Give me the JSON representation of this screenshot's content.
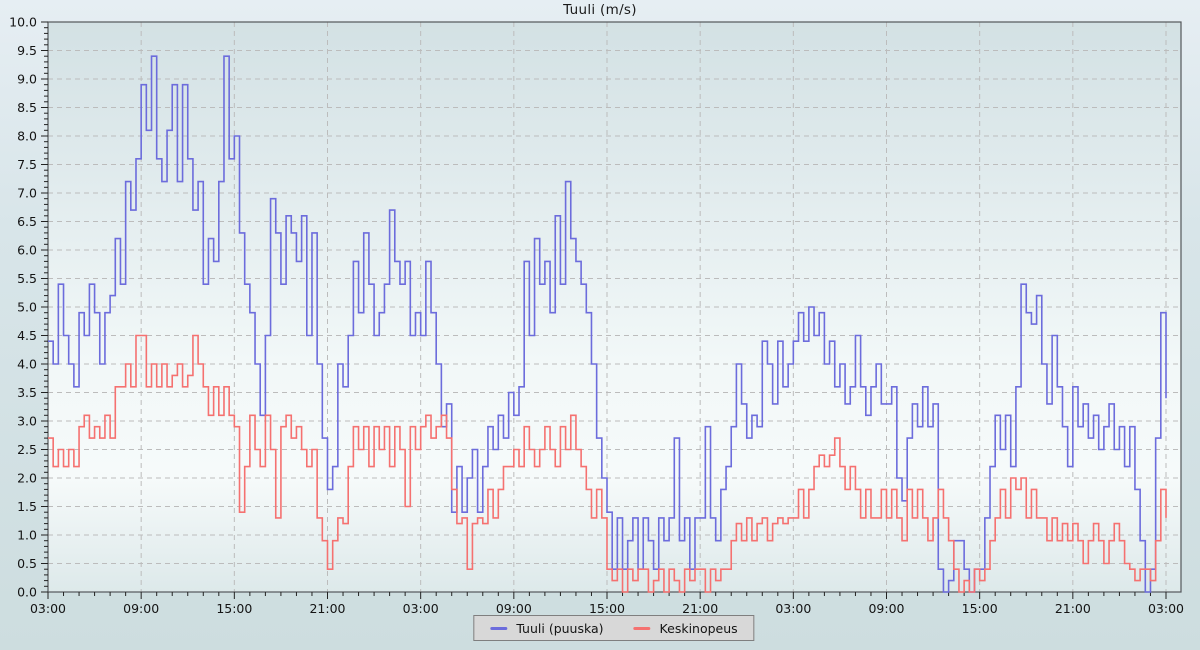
{
  "title": "Tuuli (m/s)",
  "colors": {
    "gust": "#6c6cdc",
    "average": "#f57170",
    "grid": "#bcbcbc",
    "frame": "#53575a",
    "tick": "#222222",
    "legend_background": "#d8d8d8",
    "legend_border": "#7f7f7f",
    "plot_gradient_stops": [
      "#d3e1e4",
      "#e2ecee",
      "#f2f8f8",
      "#f6fafa",
      "#dde9ea"
    ]
  },
  "chart_data": {
    "type": "line",
    "step_mode": "after",
    "title": "Tuuli (m/s)",
    "grid": "dashed",
    "legend_position": "bottom-center",
    "x_axis": {
      "unit": "time",
      "span_hours": 72,
      "sample_interval_minutes": 20,
      "major_tick_every_hours": 6,
      "minor_tick_every_hours": 1,
      "tick_labels": [
        "03:00",
        "09:00",
        "15:00",
        "21:00",
        "03:00",
        "09:00",
        "15:00",
        "21:00",
        "03:00",
        "09:00",
        "15:00",
        "21:00",
        "03:00"
      ]
    },
    "y_axis": {
      "min": 0.0,
      "max": 10.0,
      "major_step": 0.5,
      "minor_step": 0.1,
      "tick_labels": [
        "10.0",
        "9.5",
        "9.0",
        "8.5",
        "8.0",
        "7.5",
        "7.0",
        "6.5",
        "6.0",
        "5.5",
        "5.0",
        "4.5",
        "4.0",
        "3.5",
        "3.0",
        "2.5",
        "2.0",
        "1.5",
        "1.0",
        "0.5",
        "0.0"
      ]
    },
    "series": [
      {
        "name": "Tuuli (puuska)",
        "color": "#6c6cdc",
        "values": [
          4.4,
          4.0,
          5.4,
          4.5,
          4.0,
          3.6,
          4.9,
          4.5,
          5.4,
          4.9,
          4.0,
          4.9,
          5.2,
          6.2,
          5.4,
          7.2,
          6.7,
          7.6,
          8.9,
          8.1,
          9.4,
          7.6,
          7.2,
          8.1,
          8.9,
          7.2,
          8.9,
          7.6,
          6.7,
          7.2,
          5.4,
          6.2,
          5.8,
          7.2,
          9.4,
          7.6,
          8.0,
          6.3,
          5.4,
          4.9,
          4.0,
          3.1,
          4.5,
          6.9,
          6.3,
          5.4,
          6.6,
          6.3,
          5.8,
          6.6,
          4.5,
          6.3,
          4.0,
          2.7,
          1.8,
          2.2,
          4.0,
          3.6,
          4.5,
          5.8,
          4.9,
          6.3,
          5.4,
          4.5,
          4.9,
          5.4,
          6.7,
          5.8,
          5.4,
          5.8,
          4.5,
          4.9,
          4.5,
          5.8,
          4.9,
          4.0,
          2.9,
          3.3,
          1.4,
          2.2,
          1.4,
          2.0,
          2.5,
          1.4,
          2.2,
          2.9,
          2.5,
          3.1,
          2.7,
          3.5,
          3.1,
          3.6,
          5.8,
          4.5,
          6.2,
          5.4,
          5.8,
          4.9,
          6.6,
          5.4,
          7.2,
          6.2,
          5.8,
          5.4,
          4.9,
          4.0,
          2.7,
          2.0,
          1.4,
          0.4,
          1.3,
          0.4,
          0.9,
          1.3,
          0.4,
          1.3,
          0.9,
          0.4,
          1.3,
          0.9,
          1.3,
          2.7,
          0.9,
          1.3,
          0.4,
          1.3,
          1.3,
          2.9,
          1.3,
          0.9,
          1.8,
          2.2,
          2.9,
          4.0,
          3.3,
          2.7,
          3.1,
          2.9,
          4.4,
          4.0,
          3.3,
          4.4,
          3.6,
          4.0,
          4.4,
          4.9,
          4.4,
          5.0,
          4.5,
          4.9,
          4.0,
          4.4,
          3.6,
          4.0,
          3.3,
          3.6,
          4.5,
          3.6,
          3.1,
          3.6,
          4.0,
          3.3,
          3.3,
          3.6,
          2.0,
          1.6,
          2.7,
          3.3,
          2.9,
          3.6,
          2.9,
          3.3,
          0.4,
          0.0,
          0.2,
          0.9,
          0.9,
          0.4,
          0.0,
          0.4,
          0.4,
          1.3,
          2.2,
          3.1,
          2.5,
          3.1,
          2.2,
          3.6,
          5.4,
          4.9,
          4.7,
          5.2,
          4.0,
          3.3,
          4.5,
          3.6,
          2.9,
          2.2,
          3.6,
          2.9,
          3.3,
          2.7,
          3.1,
          2.5,
          2.9,
          3.3,
          2.5,
          2.9,
          2.2,
          2.9,
          1.8,
          0.9,
          0.0,
          0.4,
          2.7,
          4.9,
          3.4
        ]
      },
      {
        "name": "Keskinopeus",
        "color": "#f57170",
        "values": [
          2.7,
          2.2,
          2.5,
          2.2,
          2.5,
          2.2,
          2.9,
          3.1,
          2.7,
          2.9,
          2.7,
          3.1,
          2.7,
          3.6,
          3.6,
          4.0,
          3.6,
          4.5,
          4.5,
          3.6,
          4.0,
          3.6,
          4.0,
          3.6,
          3.8,
          4.0,
          3.6,
          3.8,
          4.5,
          4.0,
          3.6,
          3.1,
          3.6,
          3.1,
          3.6,
          3.1,
          2.9,
          1.4,
          2.2,
          3.1,
          2.5,
          2.2,
          3.1,
          2.5,
          1.3,
          2.9,
          3.1,
          2.7,
          2.9,
          2.5,
          2.2,
          2.5,
          1.3,
          0.9,
          0.4,
          0.9,
          1.3,
          1.2,
          2.2,
          2.9,
          2.5,
          2.9,
          2.2,
          2.9,
          2.5,
          2.9,
          2.2,
          2.9,
          2.5,
          1.5,
          2.9,
          2.5,
          2.9,
          3.1,
          2.7,
          2.9,
          3.1,
          2.7,
          1.8,
          1.2,
          1.3,
          0.4,
          1.2,
          1.3,
          1.2,
          1.8,
          1.3,
          1.8,
          2.2,
          2.2,
          2.5,
          2.2,
          2.9,
          2.5,
          2.2,
          2.5,
          2.9,
          2.5,
          2.2,
          2.9,
          2.5,
          3.1,
          2.5,
          2.2,
          1.8,
          1.3,
          1.8,
          1.3,
          0.4,
          0.2,
          0.4,
          0.0,
          0.4,
          0.2,
          0.4,
          0.4,
          0.0,
          0.2,
          0.4,
          0.0,
          0.4,
          0.2,
          0.0,
          0.4,
          0.2,
          0.4,
          0.4,
          0.0,
          0.4,
          0.2,
          0.4,
          0.4,
          0.9,
          1.2,
          0.9,
          1.3,
          0.9,
          1.2,
          1.3,
          0.9,
          1.2,
          1.3,
          1.2,
          1.3,
          1.3,
          1.8,
          1.3,
          1.8,
          2.2,
          2.4,
          2.2,
          2.4,
          2.7,
          2.2,
          1.8,
          2.2,
          1.8,
          1.3,
          1.8,
          1.3,
          1.3,
          1.8,
          1.3,
          1.8,
          1.3,
          0.9,
          1.8,
          1.3,
          1.8,
          1.3,
          0.9,
          1.3,
          1.8,
          1.3,
          0.9,
          0.4,
          0.0,
          0.2,
          0.0,
          0.4,
          0.2,
          0.4,
          0.9,
          1.3,
          1.8,
          1.3,
          2.0,
          1.8,
          2.0,
          1.3,
          1.8,
          1.3,
          1.3,
          0.9,
          1.3,
          0.9,
          1.2,
          0.9,
          1.2,
          0.9,
          0.5,
          0.9,
          1.2,
          0.9,
          0.5,
          0.9,
          1.2,
          0.9,
          0.5,
          0.4,
          0.2,
          0.4,
          0.4,
          0.2,
          0.9,
          1.8,
          1.3
        ]
      }
    ]
  }
}
